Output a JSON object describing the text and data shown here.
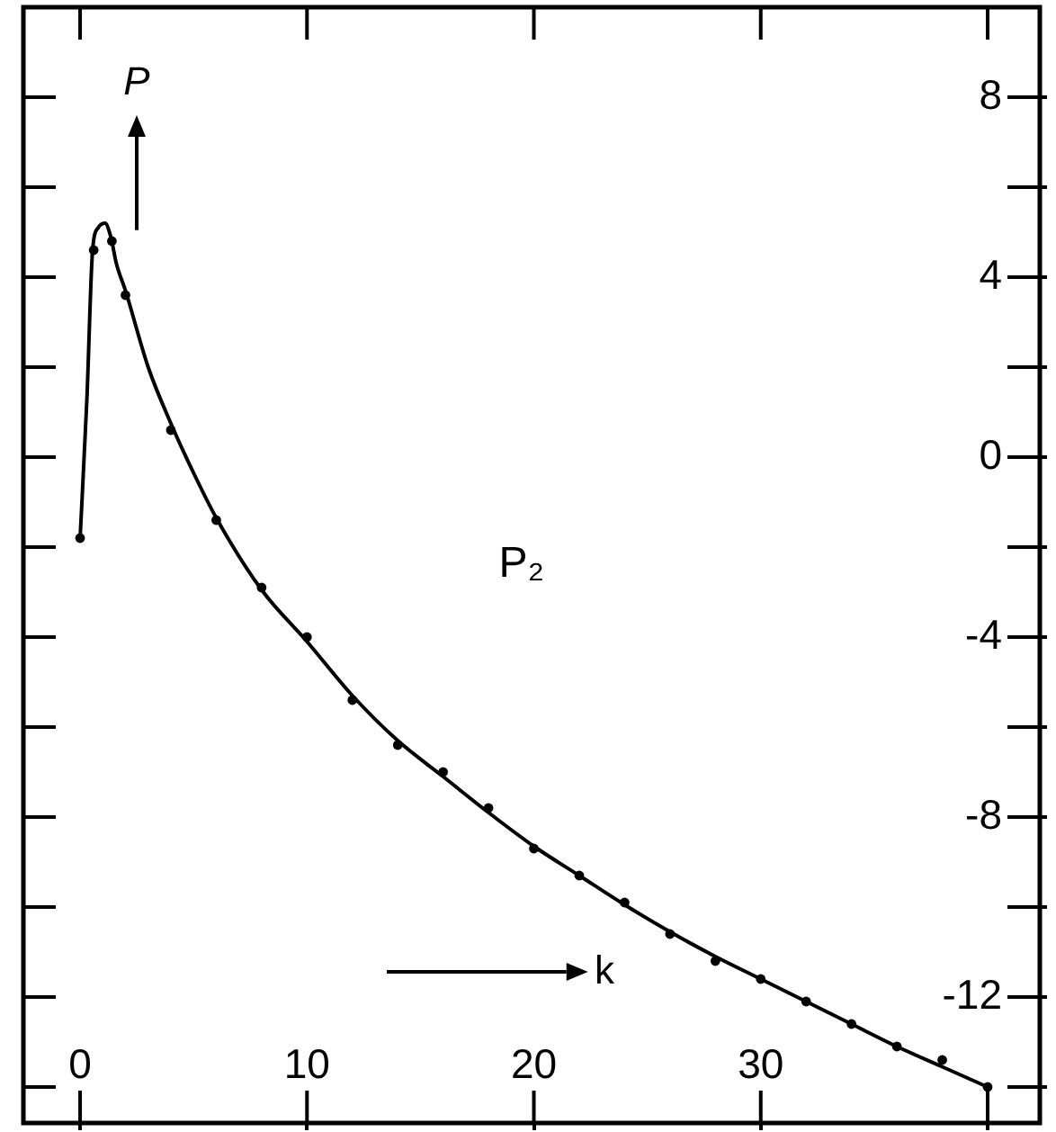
{
  "chart_data": {
    "type": "line",
    "xlabel": "k",
    "ylabel": "P",
    "annotations": [
      "P₂"
    ],
    "xlim": [
      -2.5,
      42.3
    ],
    "ylim": [
      -14.8,
      10
    ],
    "xticks": [
      0,
      10,
      20,
      30,
      {
        "value": 40,
        "label": null
      }
    ],
    "yticks": [
      {
        "value": -14,
        "label": null
      },
      -12,
      {
        "value": -10,
        "label": null
      },
      -8,
      {
        "value": -6,
        "label": null
      },
      -4,
      {
        "value": -2,
        "label": null
      },
      0,
      {
        "value": 2,
        "label": null
      },
      4,
      {
        "value": 6,
        "label": null
      },
      8
    ],
    "series": [
      {
        "type": "line",
        "color": "#000000",
        "marker": "none",
        "x": [
          0,
          0.3,
          0.55,
          0.8,
          1.1,
          1.35,
          1.6,
          2,
          3,
          4,
          5,
          6,
          8,
          10,
          12,
          14,
          16,
          18,
          20,
          22,
          24,
          26,
          28,
          30,
          32,
          34,
          36,
          38,
          40
        ],
        "values": [
          -1.8,
          1.3,
          4.6,
          5.1,
          5.2,
          4.9,
          4.3,
          3.7,
          2.0,
          0.75,
          -0.35,
          -1.35,
          -2.95,
          -4.1,
          -5.3,
          -6.3,
          -7.1,
          -7.9,
          -8.65,
          -9.3,
          -9.95,
          -10.55,
          -11.1,
          -11.6,
          -12.1,
          -12.6,
          -13.1,
          -13.55,
          -14.0
        ]
      },
      {
        "type": "scatter",
        "color": "#000000",
        "marker": "circle",
        "x": [
          0,
          0.6,
          1.4,
          2,
          4,
          6,
          8,
          10,
          12,
          14,
          16,
          18,
          20,
          22,
          24,
          26,
          28,
          30,
          32,
          34,
          36,
          38,
          40
        ],
        "values": [
          -1.8,
          4.6,
          4.8,
          3.6,
          0.6,
          -1.4,
          -2.9,
          -4.0,
          -5.4,
          -6.4,
          -7.0,
          -7.8,
          -8.7,
          -9.3,
          -9.9,
          -10.6,
          -11.2,
          -11.6,
          -12.1,
          -12.6,
          -13.1,
          -13.4,
          -14.0
        ]
      }
    ]
  }
}
